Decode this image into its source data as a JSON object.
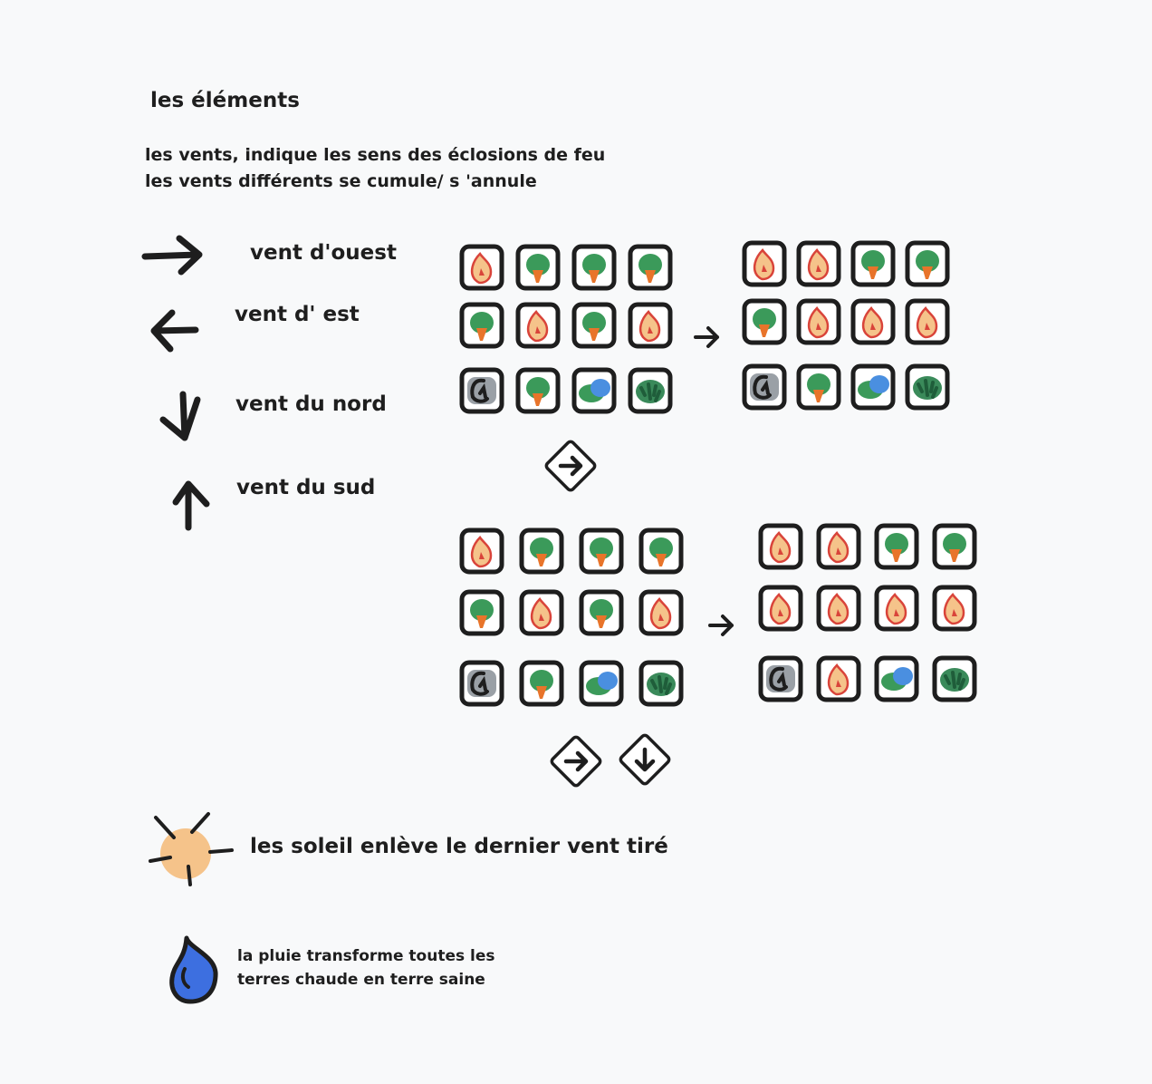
{
  "heading": "les éléments",
  "intro": {
    "line1": "les vents, indique les sens des éclosions de feu",
    "line2": "les vents différents se cumule/ s 'annule"
  },
  "winds": {
    "ouest": "vent d'ouest",
    "est": "vent d' est",
    "nord": "vent du nord",
    "sud": "vent du sud"
  },
  "sun": {
    "label": "les soleil enlève le dernier vent tiré",
    "color": "#f5c38a"
  },
  "rain": {
    "line1": "la pluie transforme toutes les",
    "line2": "terres chaude en terre saine",
    "color": "#3d6fe0"
  },
  "tile_types": [
    "fire",
    "tree",
    "rock",
    "water",
    "bush"
  ],
  "examples": [
    {
      "before": [
        [
          "fire",
          "tree",
          "tree",
          "tree"
        ],
        [
          "tree",
          "fire",
          "tree",
          "fire"
        ],
        [
          "rock",
          "tree",
          "water",
          "bush"
        ]
      ],
      "after": [
        [
          "fire",
          "fire",
          "tree",
          "tree"
        ],
        [
          "tree",
          "fire",
          "fire",
          "fire"
        ],
        [
          "rock",
          "tree",
          "water",
          "bush"
        ]
      ],
      "wind_cards": [
        "east"
      ]
    },
    {
      "before": [
        [
          "fire",
          "tree",
          "tree",
          "tree"
        ],
        [
          "tree",
          "fire",
          "tree",
          "fire"
        ],
        [
          "rock",
          "tree",
          "water",
          "bush"
        ]
      ],
      "after": [
        [
          "fire",
          "fire",
          "tree",
          "tree"
        ],
        [
          "fire",
          "fire",
          "fire",
          "fire"
        ],
        [
          "rock",
          "fire",
          "water",
          "bush"
        ]
      ],
      "wind_cards": [
        "east",
        "south"
      ]
    }
  ],
  "colors": {
    "ink": "#1e1e1e",
    "fire_outer": "#d9443a",
    "fire_inner": "#f5c38a",
    "tree_green": "#3b9a5a",
    "tree_trunk": "#e8742a",
    "rock_grey": "#9aa0a6",
    "water_blue": "#4a8fe0",
    "bush_dark": "#1f5d3a"
  }
}
